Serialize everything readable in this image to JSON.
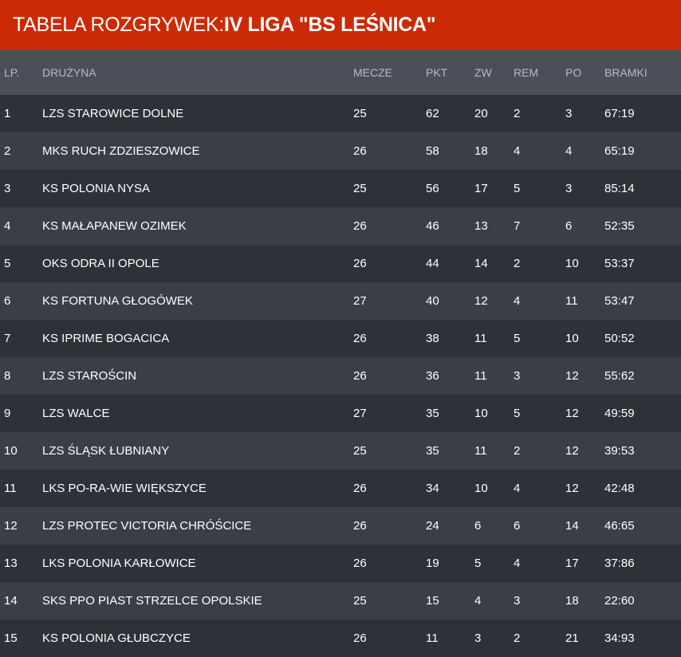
{
  "header": {
    "prefix": "TABELA ROZGRYWEK: ",
    "league": "IV LIGA \"BS LEŚNICA\""
  },
  "colors": {
    "header_bg": "#cc2a06",
    "thead_bg": "#4b4f56",
    "row_dark": "#2e3238",
    "row_light": "#3a3f46",
    "text": "#ffffff",
    "muted_text": "#b8bcc2"
  },
  "table": {
    "columns": {
      "lp": "LP.",
      "team": "DRUŻYNA",
      "matches": "MECZE",
      "points": "PKT",
      "wins": "ZW",
      "draws": "REM",
      "losses": "PO",
      "goals": "BRAMKI"
    },
    "rows": [
      {
        "lp": "1",
        "team": "LZS STAROWICE DOLNE",
        "matches": "25",
        "points": "62",
        "wins": "20",
        "draws": "2",
        "losses": "3",
        "goals": "67:19"
      },
      {
        "lp": "2",
        "team": "MKS RUCH ZDZIESZOWICE",
        "matches": "26",
        "points": "58",
        "wins": "18",
        "draws": "4",
        "losses": "4",
        "goals": "65:19"
      },
      {
        "lp": "3",
        "team": "KS POLONIA NYSA",
        "matches": "25",
        "points": "56",
        "wins": "17",
        "draws": "5",
        "losses": "3",
        "goals": "85:14"
      },
      {
        "lp": "4",
        "team": "KS MAŁAPANEW OZIMEK",
        "matches": "26",
        "points": "46",
        "wins": "13",
        "draws": "7",
        "losses": "6",
        "goals": "52:35"
      },
      {
        "lp": "5",
        "team": "OKS ODRA II OPOLE",
        "matches": "26",
        "points": "44",
        "wins": "14",
        "draws": "2",
        "losses": "10",
        "goals": "53:37"
      },
      {
        "lp": "6",
        "team": "KS FORTUNA GŁOGÓWEK",
        "matches": "27",
        "points": "40",
        "wins": "12",
        "draws": "4",
        "losses": "11",
        "goals": "53:47"
      },
      {
        "lp": "7",
        "team": "KS IPRIME BOGACICA",
        "matches": "26",
        "points": "38",
        "wins": "11",
        "draws": "5",
        "losses": "10",
        "goals": "50:52"
      },
      {
        "lp": "8",
        "team": "LZS STAROŚCIN",
        "matches": "26",
        "points": "36",
        "wins": "11",
        "draws": "3",
        "losses": "12",
        "goals": "55:62"
      },
      {
        "lp": "9",
        "team": "LZS WALCE",
        "matches": "27",
        "points": "35",
        "wins": "10",
        "draws": "5",
        "losses": "12",
        "goals": "49:59"
      },
      {
        "lp": "10",
        "team": "LZS ŚLĄSK ŁUBNIANY",
        "matches": "25",
        "points": "35",
        "wins": "11",
        "draws": "2",
        "losses": "12",
        "goals": "39:53"
      },
      {
        "lp": "11",
        "team": "LKS PO-RA-WIE WIĘKSZYCE",
        "matches": "26",
        "points": "34",
        "wins": "10",
        "draws": "4",
        "losses": "12",
        "goals": "42:48"
      },
      {
        "lp": "12",
        "team": "LZS PROTEC VICTORIA CHRÓŚCICE",
        "matches": "26",
        "points": "24",
        "wins": "6",
        "draws": "6",
        "losses": "14",
        "goals": "46:65"
      },
      {
        "lp": "13",
        "team": "LKS POLONIA KARŁOWICE",
        "matches": "26",
        "points": "19",
        "wins": "5",
        "draws": "4",
        "losses": "17",
        "goals": "37:86"
      },
      {
        "lp": "14",
        "team": "SKS PPO PIAST STRZELCE OPOLSKIE",
        "matches": "25",
        "points": "15",
        "wins": "4",
        "draws": "3",
        "losses": "18",
        "goals": "22:60"
      },
      {
        "lp": "15",
        "team": "KS POLONIA GŁUBCZYCE",
        "matches": "26",
        "points": "11",
        "wins": "3",
        "draws": "2",
        "losses": "21",
        "goals": "34:93"
      }
    ]
  }
}
